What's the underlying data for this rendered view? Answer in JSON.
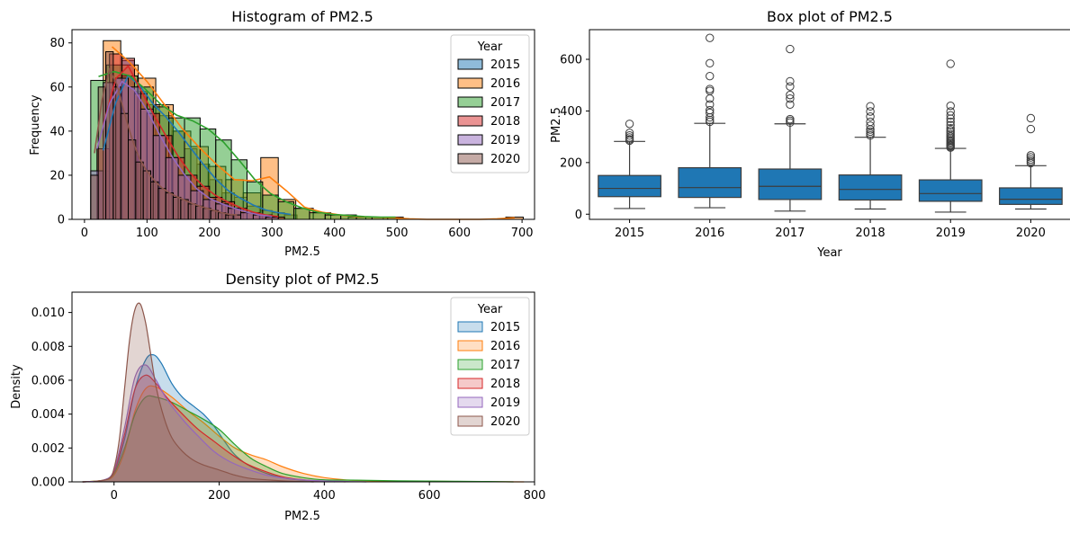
{
  "colors": {
    "2015": "#1f77b4",
    "2016": "#ff7f0e",
    "2017": "#2ca02c",
    "2018": "#d62728",
    "2019": "#9467bd",
    "2020": "#8c564b",
    "box_fill": "#1f77b4"
  },
  "chart_data": [
    {
      "type": "histogram",
      "title": "Histogram of PM2.5",
      "xlabel": "PM2.5",
      "ylabel": "Frequency",
      "xlim": [
        -20,
        720
      ],
      "ylim": [
        0,
        86
      ],
      "xticks": [
        0,
        100,
        200,
        300,
        400,
        500,
        600,
        700
      ],
      "yticks": [
        0,
        20,
        40,
        60,
        80
      ],
      "legend": {
        "title": "Year",
        "position": "top-right"
      },
      "kde_overlay": true,
      "series": [
        {
          "name": "2015",
          "bin_start": 20,
          "bin_width": 20,
          "counts": [
            22,
            59,
            72,
            58,
            52,
            47,
            40,
            32,
            25,
            18,
            12,
            10,
            6,
            4,
            3,
            2
          ]
        },
        {
          "name": "2016",
          "bin_start": 30,
          "bin_width": 28,
          "counts": [
            81,
            70,
            64,
            52,
            40,
            33,
            24,
            18,
            12,
            28,
            9,
            5,
            3,
            2,
            1,
            1,
            1,
            0,
            0,
            0,
            0,
            0,
            0,
            1
          ]
        },
        {
          "name": "2017",
          "bin_start": 10,
          "bin_width": 25,
          "counts": [
            63,
            70,
            65,
            60,
            51,
            46,
            46,
            41,
            36,
            27,
            17,
            11,
            8,
            5,
            3,
            2,
            2,
            1,
            1,
            1
          ]
        },
        {
          "name": "2018",
          "bin_start": 20,
          "bin_width": 20,
          "counts": [
            32,
            75,
            73,
            57,
            48,
            38,
            28,
            20,
            15,
            10,
            8,
            5,
            3,
            2,
            1
          ]
        },
        {
          "name": "2019",
          "bin_start": 10,
          "bin_width": 20,
          "counts": [
            22,
            62,
            64,
            60,
            50,
            38,
            28,
            20,
            13,
            9,
            7,
            5,
            3,
            2,
            1
          ]
        },
        {
          "name": "2020",
          "bin_start": 10,
          "bin_width": 12,
          "counts": [
            20,
            60,
            76,
            60,
            48,
            36,
            26,
            22,
            17,
            14,
            12,
            10,
            9,
            7,
            6,
            5,
            4,
            3,
            2,
            2
          ]
        }
      ]
    },
    {
      "type": "box",
      "title": "Box plot of PM2.5",
      "xlabel": "Year",
      "ylabel": "PM2.5",
      "ylim": [
        -20,
        715
      ],
      "yticks": [
        0,
        200,
        400,
        600
      ],
      "categories": [
        "2015",
        "2016",
        "2017",
        "2018",
        "2019",
        "2020"
      ],
      "boxes": [
        {
          "whislo": 22,
          "q1": 68,
          "med": 100,
          "q3": 150,
          "whishi": 282,
          "fliers": [
            285,
            290,
            297,
            305,
            315,
            350
          ]
        },
        {
          "whislo": 25,
          "q1": 65,
          "med": 103,
          "q3": 180,
          "whishi": 352,
          "fliers": [
            358,
            365,
            375,
            393,
            403,
            425,
            448,
            478,
            485,
            535,
            585,
            683
          ]
        },
        {
          "whislo": 12,
          "q1": 57,
          "med": 108,
          "q3": 175,
          "whishi": 350,
          "fliers": [
            355,
            362,
            368,
            425,
            448,
            462,
            495,
            515,
            640
          ]
        },
        {
          "whislo": 20,
          "q1": 55,
          "med": 96,
          "q3": 152,
          "whishi": 298,
          "fliers": [
            305,
            312,
            320,
            328,
            343,
            358,
            378,
            398,
            418
          ]
        },
        {
          "whislo": 8,
          "q1": 50,
          "med": 80,
          "q3": 133,
          "whishi": 255,
          "fliers": [
            258,
            262,
            266,
            270,
            275,
            280,
            285,
            290,
            296,
            302,
            310,
            318,
            325,
            333,
            345,
            358,
            370,
            383,
            398,
            420,
            583
          ]
        },
        {
          "whislo": 20,
          "q1": 38,
          "med": 58,
          "q3": 102,
          "whishi": 188,
          "fliers": [
            198,
            205,
            212,
            220,
            228,
            330,
            372
          ]
        }
      ]
    },
    {
      "type": "area",
      "title": "Density plot of PM2.5",
      "xlabel": "PM2.5",
      "ylabel": "Density",
      "xlim": [
        -80,
        800
      ],
      "ylim": [
        0,
        0.0112
      ],
      "xticks": [
        0,
        200,
        400,
        600,
        800
      ],
      "yticks": [
        0.0,
        0.002,
        0.004,
        0.006,
        0.008,
        0.01
      ],
      "legend": {
        "title": "Year",
        "position": "top-right"
      },
      "series": [
        {
          "name": "2015",
          "x": [
            -60,
            -20,
            0,
            20,
            40,
            60,
            75,
            90,
            110,
            130,
            150,
            170,
            190,
            210,
            230,
            260,
            300,
            340,
            380,
            420
          ],
          "y": [
            0,
            0.0001,
            0.0006,
            0.0025,
            0.0055,
            0.0072,
            0.0075,
            0.007,
            0.0058,
            0.005,
            0.0045,
            0.004,
            0.0033,
            0.0024,
            0.0016,
            0.0009,
            0.0004,
            0.00015,
            5e-05,
            0
          ]
        },
        {
          "name": "2016",
          "x": [
            -60,
            -20,
            0,
            20,
            40,
            60,
            80,
            110,
            140,
            170,
            200,
            230,
            260,
            290,
            320,
            360,
            400,
            450,
            520,
            600,
            700,
            780
          ],
          "y": [
            0,
            0.0001,
            0.0004,
            0.0018,
            0.0042,
            0.0055,
            0.0056,
            0.005,
            0.0042,
            0.0035,
            0.0027,
            0.002,
            0.0016,
            0.0013,
            0.0009,
            0.0005,
            0.00025,
            0.0001,
            5e-05,
            3e-05,
            1e-05,
            0
          ]
        },
        {
          "name": "2017",
          "x": [
            -60,
            -20,
            0,
            20,
            40,
            60,
            80,
            110,
            140,
            170,
            200,
            230,
            260,
            290,
            320,
            360,
            400,
            460,
            540,
            620,
            700,
            760
          ],
          "y": [
            0,
            0.0001,
            0.0005,
            0.002,
            0.004,
            0.005,
            0.005,
            0.0047,
            0.0042,
            0.0037,
            0.0031,
            0.0022,
            0.0014,
            0.0009,
            0.0005,
            0.00025,
            0.00012,
            0.0001,
            6e-05,
            4e-05,
            2e-05,
            0
          ]
        },
        {
          "name": "2018",
          "x": [
            -60,
            -20,
            0,
            20,
            40,
            60,
            80,
            100,
            130,
            160,
            190,
            220,
            250,
            280,
            320,
            360,
            400,
            440
          ],
          "y": [
            0,
            0.0001,
            0.0006,
            0.0028,
            0.0055,
            0.0063,
            0.0058,
            0.005,
            0.004,
            0.0031,
            0.0024,
            0.0017,
            0.0011,
            0.0007,
            0.0003,
            0.00012,
            4e-05,
            0
          ]
        },
        {
          "name": "2019",
          "x": [
            -60,
            -20,
            0,
            20,
            40,
            60,
            80,
            100,
            130,
            160,
            190,
            220,
            250,
            290,
            330,
            380,
            430,
            480
          ],
          "y": [
            0,
            0.0001,
            0.0007,
            0.0032,
            0.0062,
            0.0069,
            0.006,
            0.0049,
            0.0037,
            0.0027,
            0.0018,
            0.0012,
            0.0008,
            0.0004,
            0.0002,
            8e-05,
            3e-05,
            0
          ]
        },
        {
          "name": "2020",
          "x": [
            -40,
            -10,
            0,
            10,
            20,
            30,
            40,
            50,
            60,
            70,
            80,
            95,
            110,
            130,
            150,
            170,
            200,
            230,
            260,
            300,
            340,
            380
          ],
          "y": [
            0,
            0.0002,
            0.0008,
            0.0025,
            0.0055,
            0.0085,
            0.0102,
            0.0105,
            0.0094,
            0.0075,
            0.0056,
            0.0038,
            0.0026,
            0.0018,
            0.0013,
            0.001,
            0.0007,
            0.0004,
            0.0002,
            0.0001,
            3e-05,
            0
          ]
        }
      ]
    }
  ]
}
